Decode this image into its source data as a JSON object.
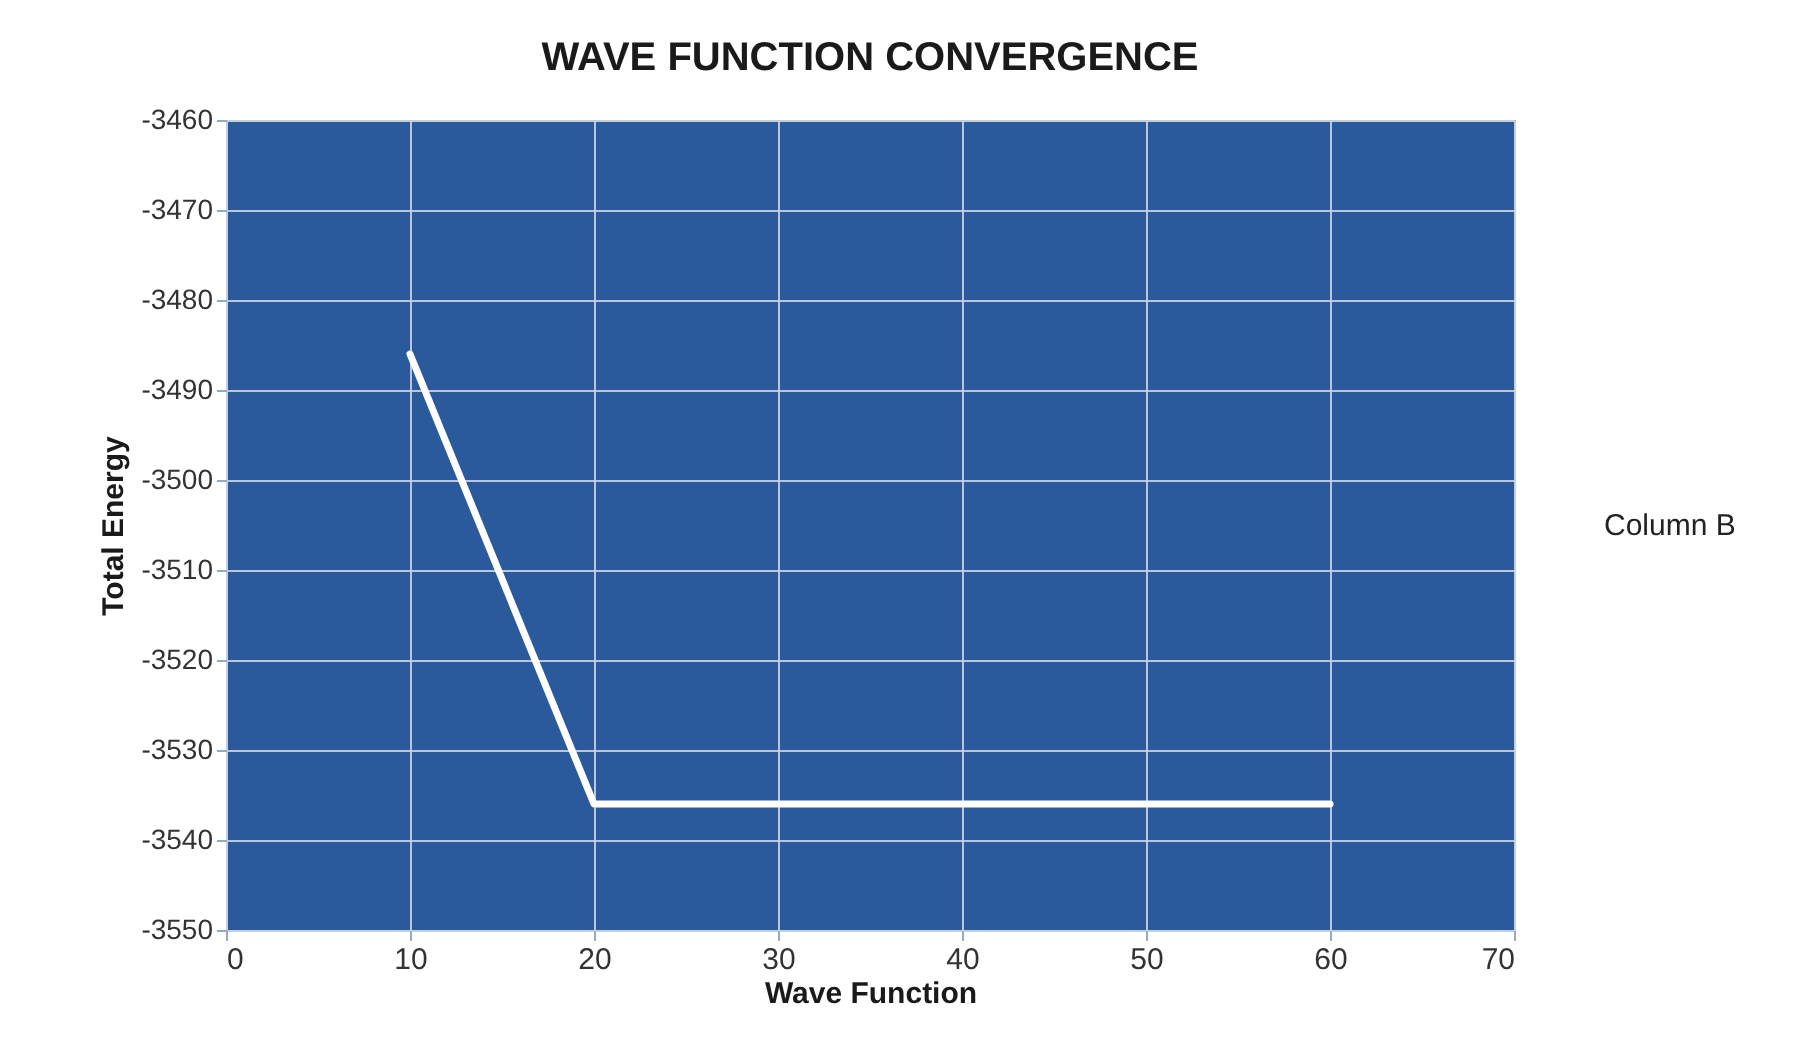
{
  "chart_data": {
    "type": "line",
    "title": "WAVE FUNCTION CONVERGENCE",
    "xlabel": "Wave Function",
    "ylabel": "Total Energy",
    "x": [
      10,
      20,
      30,
      40,
      50,
      60
    ],
    "series": [
      {
        "name": "Column B",
        "color": "#ffffff",
        "values": [
          -3486,
          -3536,
          -3536,
          -3536,
          -3536,
          -3536
        ]
      }
    ],
    "xlim": [
      0,
      70
    ],
    "xticks": [
      0,
      10,
      20,
      30,
      40,
      50,
      60,
      70
    ],
    "ylim": [
      -3550,
      -3460
    ],
    "yticks": [
      -3550,
      -3540,
      -3530,
      -3520,
      -3510,
      -3500,
      -3490,
      -3480,
      -3470,
      -3460
    ],
    "grid": true,
    "legend": "right",
    "marker": "none",
    "line_style": "solid"
  }
}
